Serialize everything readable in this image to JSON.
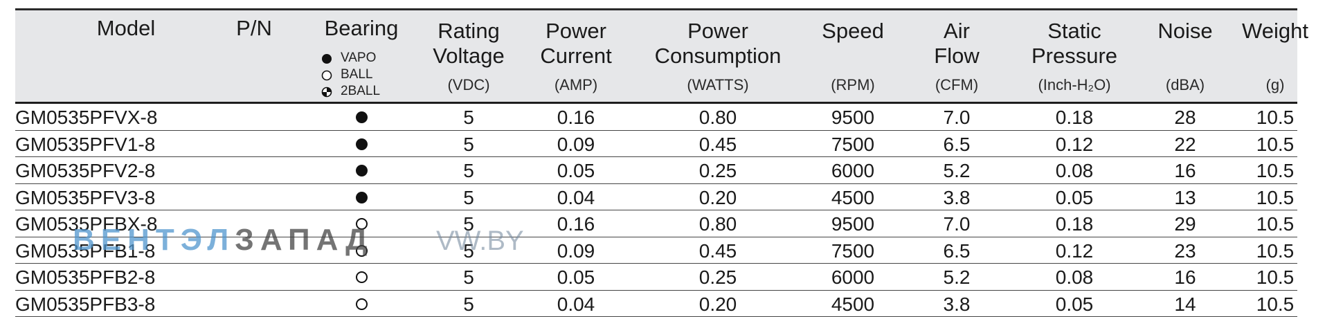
{
  "columns": {
    "model": {
      "title": [
        "Model"
      ],
      "unit": ""
    },
    "pn": {
      "title": [
        "P/N"
      ],
      "unit": ""
    },
    "bearing": {
      "title": [
        "Bearing"
      ],
      "legend": [
        {
          "icon": "filled-circle",
          "label": "VAPO"
        },
        {
          "icon": "open-circle",
          "label": "BALL"
        },
        {
          "icon": "quartered-circle",
          "label": "2BALL"
        }
      ]
    },
    "voltage": {
      "title": [
        "Rating",
        "Voltage"
      ],
      "unit": "(VDC)"
    },
    "current": {
      "title": [
        "Power",
        "Current"
      ],
      "unit": "(AMP)"
    },
    "consumption": {
      "title": [
        "Power",
        "Consumption"
      ],
      "unit": "(WATTS)"
    },
    "speed": {
      "title": [
        "Speed"
      ],
      "unit": "(RPM)"
    },
    "airflow": {
      "title": [
        "Air",
        "Flow"
      ],
      "unit": "(CFM)"
    },
    "pressure": {
      "title": [
        "Static",
        "Pressure"
      ],
      "unit": "(Inch-H₂O)"
    },
    "noise": {
      "title": [
        "Noise"
      ],
      "unit": "(dBA)"
    },
    "weight": {
      "title": [
        "Weight"
      ],
      "unit": "(g)"
    }
  },
  "rows": [
    {
      "model": "GM0535PFVX-8",
      "bearing": "VAPO",
      "voltage": "5",
      "current": "0.16",
      "consumption": "0.80",
      "speed": "9500",
      "airflow": "7.0",
      "pressure": "0.18",
      "noise": "28",
      "weight": "10.5"
    },
    {
      "model": "GM0535PFV1-8",
      "bearing": "VAPO",
      "voltage": "5",
      "current": "0.09",
      "consumption": "0.45",
      "speed": "7500",
      "airflow": "6.5",
      "pressure": "0.12",
      "noise": "22",
      "weight": "10.5"
    },
    {
      "model": "GM0535PFV2-8",
      "bearing": "VAPO",
      "voltage": "5",
      "current": "0.05",
      "consumption": "0.25",
      "speed": "6000",
      "airflow": "5.2",
      "pressure": "0.08",
      "noise": "16",
      "weight": "10.5"
    },
    {
      "model": "GM0535PFV3-8",
      "bearing": "VAPO",
      "voltage": "5",
      "current": "0.04",
      "consumption": "0.20",
      "speed": "4500",
      "airflow": "3.8",
      "pressure": "0.05",
      "noise": "13",
      "weight": "10.5"
    },
    {
      "model": "GM0535PFBX-8",
      "bearing": "BALL",
      "voltage": "5",
      "current": "0.16",
      "consumption": "0.80",
      "speed": "9500",
      "airflow": "7.0",
      "pressure": "0.18",
      "noise": "29",
      "weight": "10.5"
    },
    {
      "model": "GM0535PFB1-8",
      "bearing": "BALL",
      "voltage": "5",
      "current": "0.09",
      "consumption": "0.45",
      "speed": "7500",
      "airflow": "6.5",
      "pressure": "0.12",
      "noise": "23",
      "weight": "10.5"
    },
    {
      "model": "GM0535PFB2-8",
      "bearing": "BALL",
      "voltage": "5",
      "current": "0.05",
      "consumption": "0.25",
      "speed": "6000",
      "airflow": "5.2",
      "pressure": "0.08",
      "noise": "16",
      "weight": "10.5"
    },
    {
      "model": "GM0535PFB3-8",
      "bearing": "BALL",
      "voltage": "5",
      "current": "0.04",
      "consumption": "0.20",
      "speed": "4500",
      "airflow": "3.8",
      "pressure": "0.05",
      "noise": "14",
      "weight": "10.5"
    }
  ],
  "watermark": {
    "brand_part1": "ВЕНТЭЛ",
    "brand_part2": "ЗАПАД",
    "url": "VW.BY"
  },
  "colors": {
    "header_bg": "#e6e7e9",
    "watermark_blue": "#5096cd",
    "text": "#1a1a1a"
  }
}
